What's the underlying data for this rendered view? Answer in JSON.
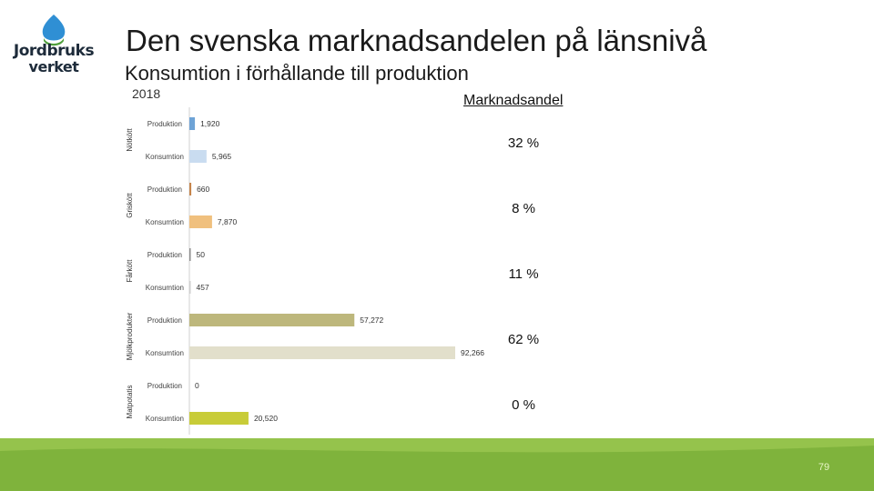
{
  "header": {
    "title": "Den svenska marknadsandelen på länsnivå",
    "subtitle": "Konsumtion i förhållande till produktion",
    "year": "2018",
    "market_share_header": "Marknadsandel"
  },
  "logo": {
    "line1": "Jordbruks",
    "line2": "verket"
  },
  "colors": {
    "footer_green": "#7fb33c",
    "footer_green_light": "#a7cf5a",
    "logo_blue": "#2f8fd4",
    "logo_green": "#4e9f3a"
  },
  "chart_data": {
    "type": "bar",
    "orientation": "horizontal",
    "groups": [
      {
        "category": "Nötkött",
        "share": "32 %",
        "bars": [
          {
            "label": "Produktion",
            "value": 1920,
            "value_label": "1,920",
            "color": "#6ea3d6"
          },
          {
            "label": "Konsumtion",
            "value": 5965,
            "value_label": "5,965",
            "color": "#c9dcf0"
          }
        ]
      },
      {
        "category": "Griskött",
        "share": "8 %",
        "bars": [
          {
            "label": "Produktion",
            "value": 660,
            "value_label": "660",
            "color": "#c5844a"
          },
          {
            "label": "Konsumtion",
            "value": 7870,
            "value_label": "7,870",
            "color": "#f0c07e"
          }
        ]
      },
      {
        "category": "Fårkött",
        "share": "11 %",
        "bars": [
          {
            "label": "Produktion",
            "value": 50,
            "value_label": "50",
            "color": "#8d8d8d"
          },
          {
            "label": "Konsumtion",
            "value": 457,
            "value_label": "457",
            "color": "#cfcfcf"
          }
        ]
      },
      {
        "category": "Mjölkprodukter",
        "share": "62 %",
        "bars": [
          {
            "label": "Produktion",
            "value": 57272,
            "value_label": "57,272",
            "color": "#bdb77c"
          },
          {
            "label": "Konsumtion",
            "value": 92266,
            "value_label": "92,266",
            "color": "#e2dfcb"
          }
        ]
      },
      {
        "category": "Matpotatis",
        "share": "0 %",
        "bars": [
          {
            "label": "Produktion",
            "value": 0,
            "value_label": "0",
            "color": "#8e9b2e"
          },
          {
            "label": "Konsumtion",
            "value": 20520,
            "value_label": "20,520",
            "color": "#c8cc38"
          }
        ]
      }
    ]
  },
  "footer": {
    "page_number": "79"
  }
}
